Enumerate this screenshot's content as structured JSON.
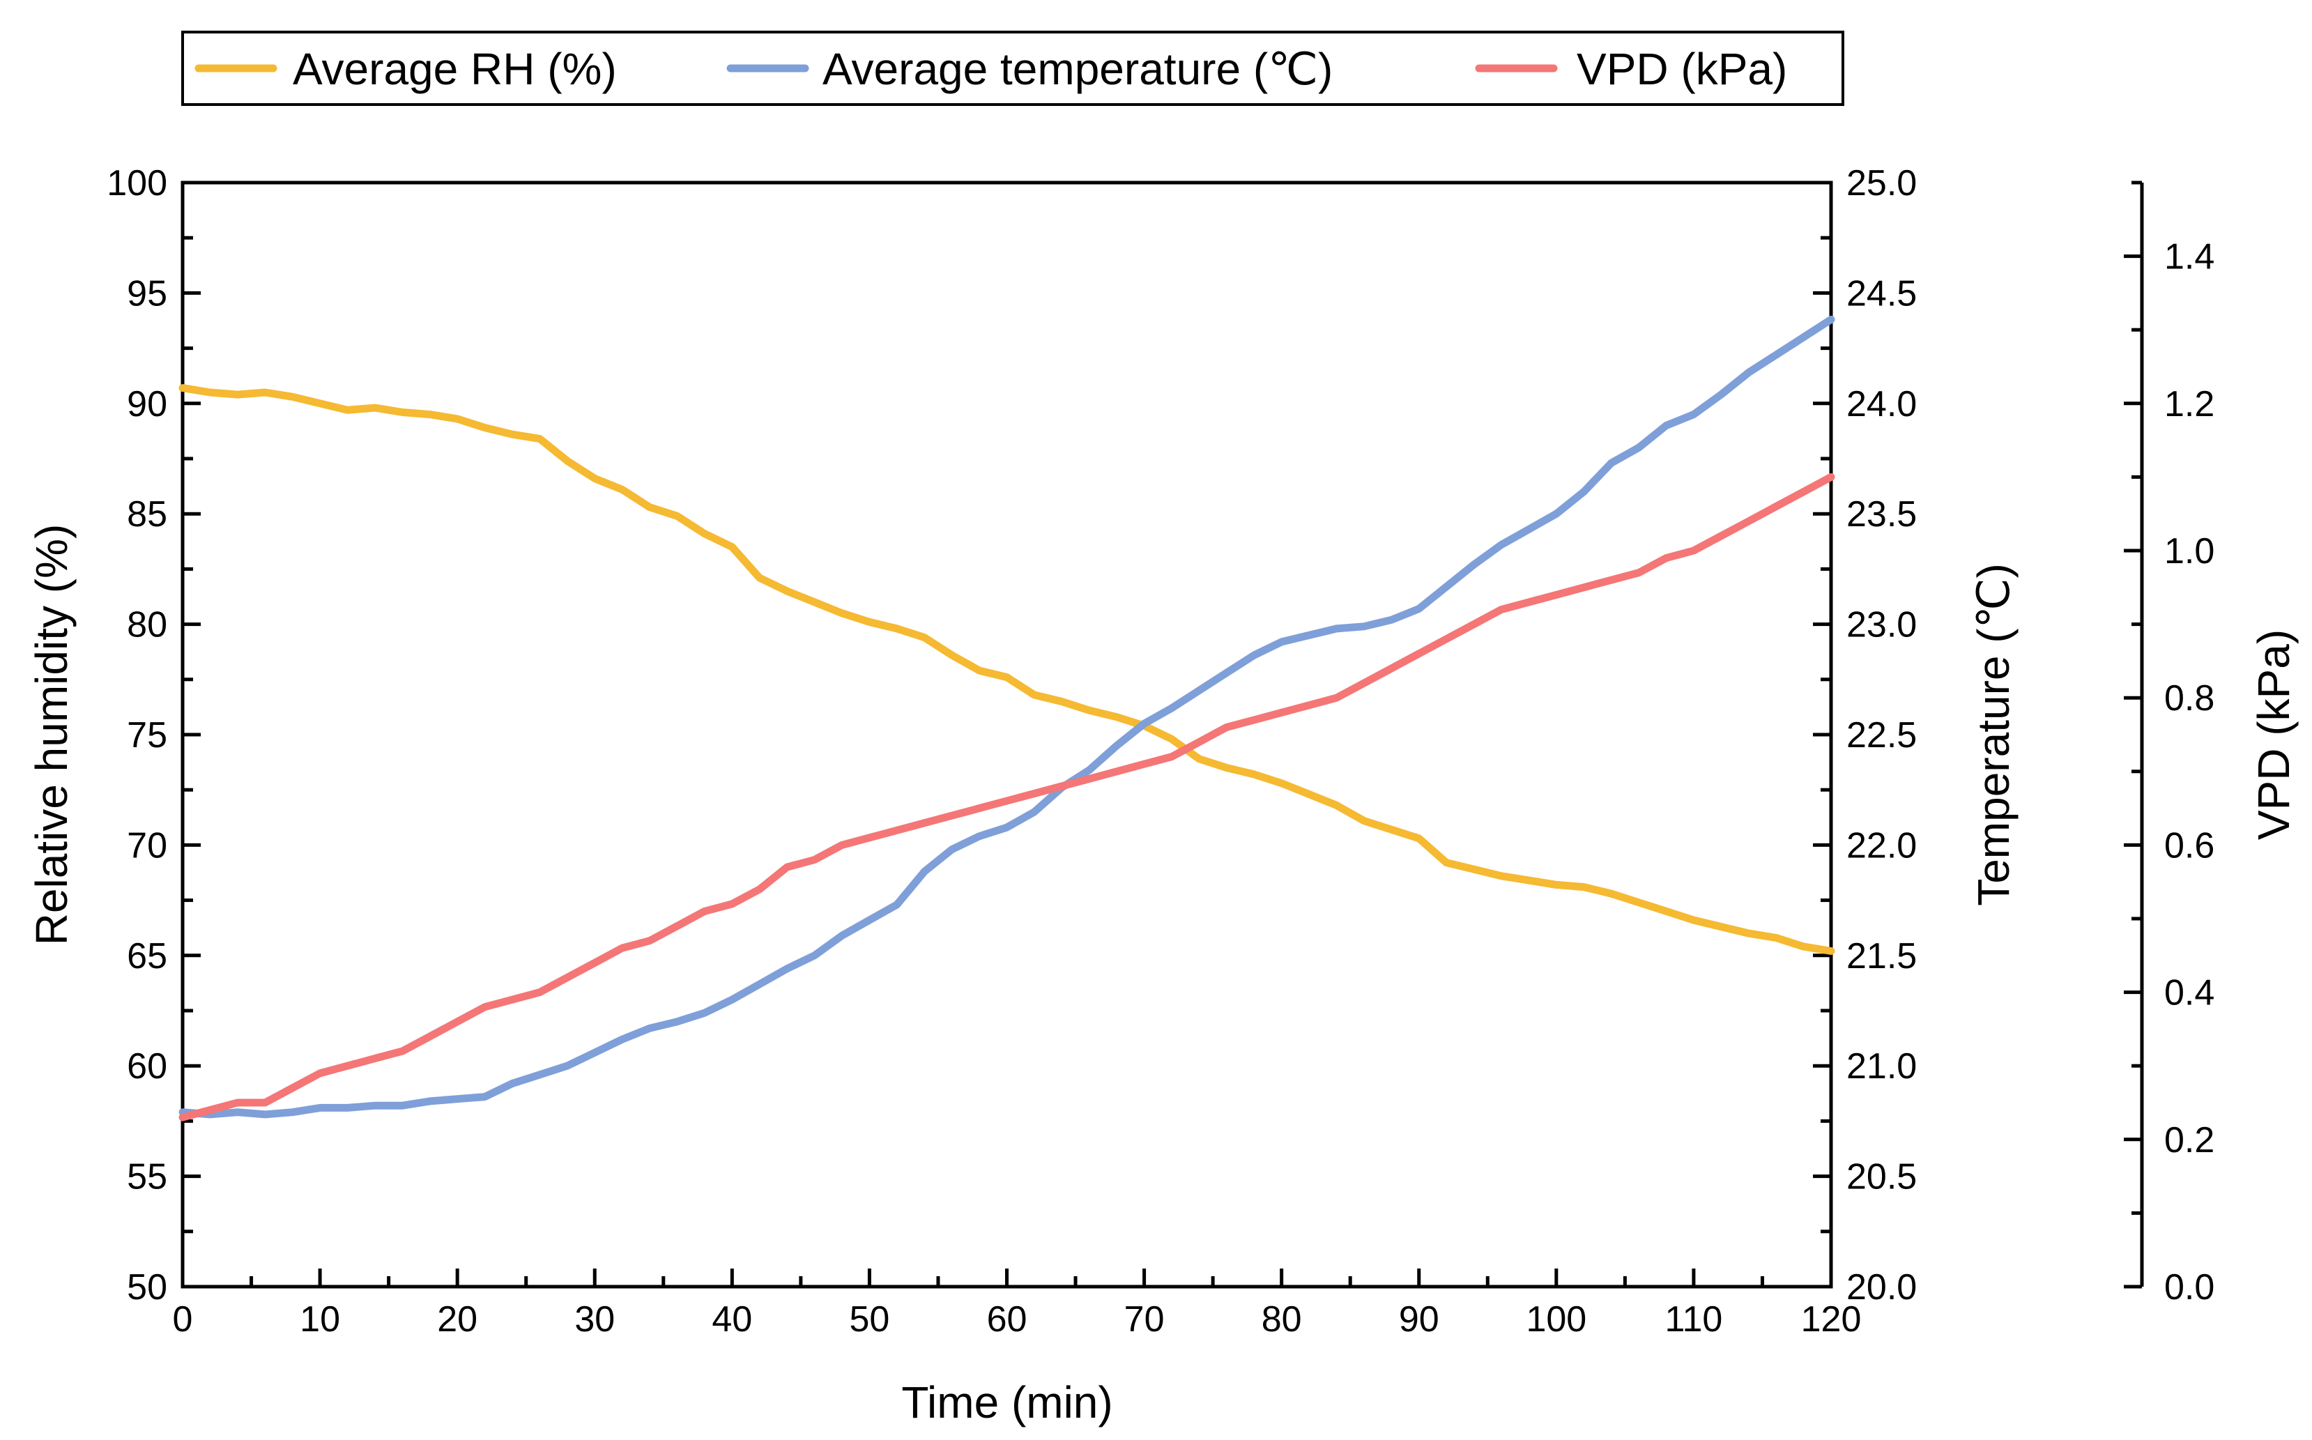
{
  "chart_data": {
    "type": "line",
    "x": [
      0,
      2,
      4,
      6,
      8,
      10,
      12,
      14,
      16,
      18,
      20,
      22,
      24,
      26,
      28,
      30,
      32,
      34,
      36,
      38,
      40,
      42,
      44,
      46,
      48,
      50,
      52,
      54,
      56,
      58,
      60,
      62,
      64,
      66,
      68,
      70,
      72,
      74,
      76,
      78,
      80,
      82,
      84,
      86,
      88,
      90,
      92,
      94,
      96,
      98,
      100,
      102,
      104,
      106,
      108,
      110,
      112,
      114,
      116,
      118,
      120
    ],
    "series": [
      {
        "name": "Average RH (%)",
        "axis": "left",
        "color": "#F5B932",
        "values": [
          90.7,
          90.5,
          90.4,
          90.5,
          90.3,
          90.0,
          89.7,
          89.8,
          89.6,
          89.5,
          89.3,
          88.9,
          88.6,
          88.4,
          87.4,
          86.6,
          86.1,
          85.3,
          84.9,
          84.1,
          83.5,
          82.1,
          81.5,
          81.0,
          80.5,
          80.1,
          79.8,
          79.4,
          78.6,
          77.9,
          77.6,
          76.8,
          76.5,
          76.1,
          75.8,
          75.4,
          74.8,
          73.9,
          73.5,
          73.2,
          72.8,
          72.3,
          71.8,
          71.1,
          70.7,
          70.3,
          69.2,
          68.9,
          68.6,
          68.4,
          68.2,
          68.1,
          67.8,
          67.4,
          67.0,
          66.6,
          66.3,
          66.0,
          65.8,
          65.4,
          65.2
        ]
      },
      {
        "name": "Average temperature (℃)",
        "axis": "right",
        "color": "#7F9FD9",
        "values": [
          20.79,
          20.78,
          20.79,
          20.78,
          20.79,
          20.81,
          20.81,
          20.82,
          20.82,
          20.84,
          20.85,
          20.86,
          20.92,
          20.96,
          21.0,
          21.06,
          21.12,
          21.17,
          21.2,
          21.24,
          21.3,
          21.37,
          21.44,
          21.5,
          21.59,
          21.66,
          21.73,
          21.88,
          21.98,
          22.04,
          22.08,
          22.15,
          22.26,
          22.34,
          22.45,
          22.55,
          22.62,
          22.7,
          22.78,
          22.86,
          22.92,
          22.95,
          22.98,
          22.99,
          23.02,
          23.07,
          23.17,
          23.27,
          23.36,
          23.43,
          23.5,
          23.6,
          23.73,
          23.8,
          23.9,
          23.95,
          24.04,
          24.14,
          24.22,
          24.3,
          24.38
        ]
      },
      {
        "name": "VPD (kPa)",
        "axis": "vpd",
        "color": "#F47676",
        "values": [
          0.23,
          0.24,
          0.25,
          0.25,
          0.27,
          0.29,
          0.3,
          0.31,
          0.32,
          0.34,
          0.36,
          0.38,
          0.39,
          0.4,
          0.42,
          0.44,
          0.46,
          0.47,
          0.49,
          0.51,
          0.52,
          0.54,
          0.57,
          0.58,
          0.6,
          0.61,
          0.62,
          0.63,
          0.64,
          0.65,
          0.66,
          0.67,
          0.68,
          0.69,
          0.7,
          0.71,
          0.72,
          0.74,
          0.76,
          0.77,
          0.78,
          0.79,
          0.8,
          0.82,
          0.84,
          0.86,
          0.88,
          0.9,
          0.92,
          0.93,
          0.94,
          0.95,
          0.96,
          0.97,
          0.99,
          1.0,
          1.02,
          1.04,
          1.06,
          1.08,
          1.1
        ]
      }
    ],
    "xlabel": "Time (min)",
    "xlim": [
      0,
      120
    ],
    "xticks": [
      "0",
      "10",
      "20",
      "30",
      "40",
      "50",
      "60",
      "70",
      "80",
      "90",
      "100",
      "110",
      "120"
    ],
    "y_left": {
      "label": "Relative humidity (%)",
      "lim": [
        50,
        100
      ],
      "ticks": [
        "50",
        "55",
        "60",
        "65",
        "70",
        "75",
        "80",
        "85",
        "90",
        "95",
        "100"
      ]
    },
    "y_right": {
      "label": "Temperature (℃)",
      "lim": [
        20.0,
        25.0
      ],
      "ticks": [
        "20.0",
        "20.5",
        "21.0",
        "21.5",
        "22.0",
        "22.5",
        "23.0",
        "23.5",
        "24.0",
        "24.5",
        "25.0"
      ]
    },
    "y_vpd": {
      "label": "VPD (kPa)",
      "lim": [
        0,
        1.5
      ],
      "ticks": [
        "0.0",
        "0.2",
        "0.4",
        "0.6",
        "0.8",
        "1.0",
        "1.2",
        "1.4"
      ]
    },
    "legend": {
      "position": "top-left",
      "entries": [
        "Average RH (%)",
        "Average temperature (℃)",
        "VPD (kPa)"
      ]
    },
    "grid": false
  }
}
